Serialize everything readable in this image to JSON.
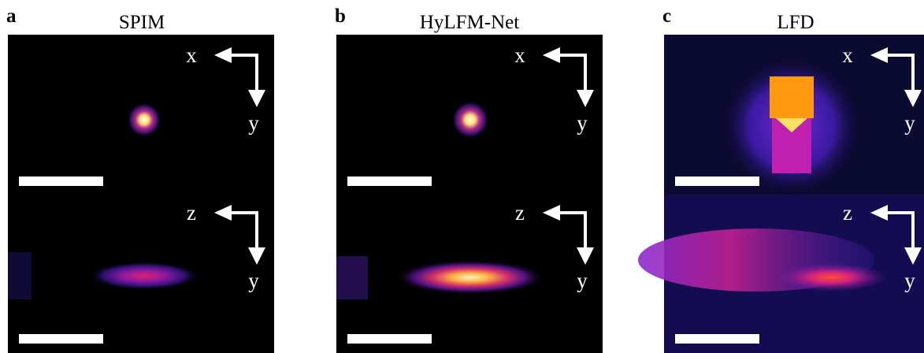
{
  "panels": [
    {
      "letter": "a",
      "title": "SPIM",
      "top_axes": {
        "horizontal": "x",
        "vertical": "y"
      },
      "bottom_axes": {
        "horizontal": "z",
        "vertical": "y"
      }
    },
    {
      "letter": "b",
      "title": "HyLFM-Net",
      "top_axes": {
        "horizontal": "x",
        "vertical": "y"
      },
      "bottom_axes": {
        "horizontal": "z",
        "vertical": "y"
      }
    },
    {
      "letter": "c",
      "title": "LFD",
      "top_axes": {
        "horizontal": "x",
        "vertical": "y"
      },
      "bottom_axes": {
        "horizontal": "z",
        "vertical": "y"
      }
    }
  ]
}
